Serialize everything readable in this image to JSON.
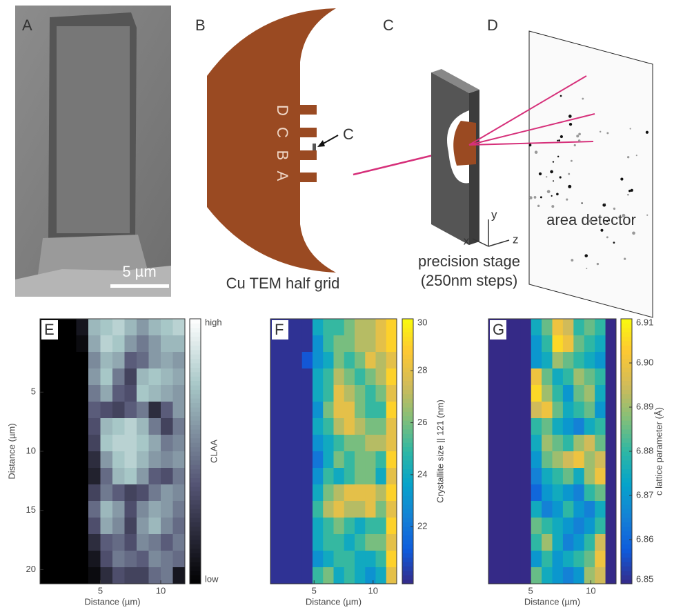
{
  "panel_labels": [
    "A",
    "B",
    "C",
    "D",
    "E",
    "F",
    "G"
  ],
  "scale_bar": "5 µm",
  "grid_labels": [
    "A",
    "B",
    "C",
    "D"
  ],
  "grid_arrow_label": "C",
  "grid_caption": "Cu TEM half grid",
  "stage_axes": [
    "x",
    "y",
    "z"
  ],
  "stage_caption": [
    "precision stage",
    "(250nm steps)"
  ],
  "detector_caption": "area detector",
  "chart_data": [
    {
      "type": "heatmap",
      "xlabel": "Distance (µm)",
      "ylabel": "Distance (µm)",
      "xlim": [
        0,
        12
      ],
      "ylim": [
        -1.2,
        21.2
      ],
      "y_reversed": true,
      "xticks": [
        5,
        10
      ],
      "yticks": [
        5,
        10,
        15,
        20
      ],
      "colormap": "bone",
      "clim": [
        0,
        1
      ],
      "cticks": [
        {
          "value": 1,
          "label": "high"
        },
        {
          "value": 0,
          "label": "low"
        }
      ],
      "clabel": "CLAA",
      "z": [
        [
          0,
          0,
          0,
          0.1,
          0.7,
          0.75,
          0.8,
          0.7,
          0.6,
          0.7,
          0.75,
          0.8
        ],
        [
          0,
          0,
          0,
          0.05,
          0.65,
          0.8,
          0.75,
          0.6,
          0.5,
          0.6,
          0.7,
          0.7
        ],
        [
          0,
          0,
          0,
          0,
          0.55,
          0.7,
          0.65,
          0.4,
          0.45,
          0.6,
          0.65,
          0.6
        ],
        [
          0,
          0,
          0,
          0,
          0.6,
          0.75,
          0.5,
          0.3,
          0.7,
          0.75,
          0.7,
          0.65
        ],
        [
          0,
          0,
          0,
          0,
          0.5,
          0.65,
          0.4,
          0.35,
          0.75,
          0.7,
          0.65,
          0.6
        ],
        [
          0,
          0,
          0,
          0,
          0.4,
          0.35,
          0.3,
          0.4,
          0.5,
          0.2,
          0.4,
          0.6
        ],
        [
          0,
          0,
          0,
          0,
          0.35,
          0.7,
          0.75,
          0.8,
          0.7,
          0.5,
          0.3,
          0.5
        ],
        [
          0,
          0,
          0,
          0,
          0.3,
          0.75,
          0.8,
          0.8,
          0.75,
          0.65,
          0.5,
          0.55
        ],
        [
          0,
          0,
          0,
          0,
          0.2,
          0.6,
          0.75,
          0.8,
          0.7,
          0.6,
          0.55,
          0.6
        ],
        [
          0,
          0,
          0,
          0,
          0.15,
          0.45,
          0.7,
          0.75,
          0.6,
          0.4,
          0.35,
          0.5
        ],
        [
          0,
          0,
          0,
          0,
          0.3,
          0.5,
          0.4,
          0.3,
          0.35,
          0.5,
          0.6,
          0.55
        ],
        [
          0,
          0,
          0,
          0,
          0.45,
          0.7,
          0.6,
          0.35,
          0.55,
          0.65,
          0.6,
          0.5
        ],
        [
          0,
          0,
          0,
          0,
          0.35,
          0.65,
          0.55,
          0.3,
          0.6,
          0.7,
          0.55,
          0.45
        ],
        [
          0,
          0,
          0,
          0,
          0.2,
          0.4,
          0.45,
          0.35,
          0.55,
          0.5,
          0.4,
          0.5
        ],
        [
          0,
          0,
          0,
          0,
          0.1,
          0.35,
          0.5,
          0.45,
          0.4,
          0.55,
          0.5,
          0.45
        ],
        [
          0,
          0,
          0,
          0,
          0.05,
          0.2,
          0.35,
          0.3,
          0.3,
          0.45,
          0.5,
          0.1
        ]
      ]
    },
    {
      "type": "heatmap",
      "xlabel": "Distance (µm)",
      "xlim": [
        1.3,
        12
      ],
      "ylim": [
        -1.2,
        21.2
      ],
      "y_reversed": true,
      "xticks": [
        5,
        10
      ],
      "colormap": "parula",
      "clim": [
        19.8,
        30
      ],
      "cticks": [
        22,
        24,
        26,
        28,
        30
      ],
      "clabel": "Crystallite size || 121 (nm)",
      "z": [
        [
          20,
          20,
          20,
          20,
          24,
          25,
          25,
          26,
          27,
          27,
          28,
          29
        ],
        [
          20,
          20,
          20,
          20,
          23,
          25,
          26,
          26,
          27,
          27,
          28,
          29
        ],
        [
          20,
          20,
          20,
          21,
          23,
          24,
          26,
          25,
          26,
          28,
          27,
          28
        ],
        [
          20,
          20,
          20,
          20,
          24,
          25,
          27,
          26,
          25,
          26,
          27,
          29
        ],
        [
          20,
          20,
          20,
          20,
          24,
          25,
          28,
          27,
          26,
          25,
          26,
          28
        ],
        [
          20,
          20,
          20,
          20,
          23,
          26,
          28,
          28,
          26,
          25,
          25,
          29
        ],
        [
          20,
          20,
          20,
          20,
          24,
          25,
          27,
          28,
          27,
          26,
          26,
          28
        ],
        [
          20,
          20,
          20,
          20,
          23,
          24,
          25,
          26,
          26,
          27,
          27,
          28
        ],
        [
          20,
          20,
          20,
          20,
          22,
          24,
          26,
          25,
          26,
          26,
          25,
          29
        ],
        [
          20,
          20,
          20,
          20,
          23,
          25,
          24,
          25,
          26,
          26,
          24,
          28
        ],
        [
          20,
          20,
          20,
          20,
          24,
          26,
          27,
          28,
          28,
          28,
          27,
          29
        ],
        [
          20,
          20,
          20,
          20,
          25,
          27,
          28,
          27,
          27,
          28,
          26,
          28
        ],
        [
          20,
          20,
          20,
          20,
          24,
          25,
          26,
          25,
          24,
          25,
          25,
          29
        ],
        [
          20,
          20,
          20,
          20,
          24,
          25,
          25,
          24,
          25,
          26,
          26,
          28
        ],
        [
          20,
          20,
          20,
          20,
          23,
          24,
          25,
          25,
          24,
          24,
          25,
          29
        ],
        [
          20,
          20,
          20,
          20,
          25,
          26,
          24,
          25,
          24,
          23,
          24,
          28
        ]
      ]
    },
    {
      "type": "heatmap",
      "xlabel": "Distance (µm)",
      "xlim": [
        1.5,
        12.1
      ],
      "ylim": [
        -1.2,
        21.2
      ],
      "y_reversed": true,
      "xticks": [
        5,
        10
      ],
      "colormap": "parula",
      "clim": [
        6.85,
        6.91
      ],
      "cticks": [
        6.85,
        6.86,
        6.87,
        6.88,
        6.89,
        {
          "value": 6.9,
          "label": "6.90"
        },
        6.91
      ],
      "clabel": "c lattice parameter (Å)",
      "z": [
        [
          6.85,
          6.85,
          6.85,
          6.85,
          6.875,
          6.885,
          6.9,
          6.895,
          6.88,
          6.885,
          6.88,
          6.85
        ],
        [
          6.85,
          6.85,
          6.85,
          6.85,
          6.87,
          6.88,
          6.905,
          6.9,
          6.885,
          6.88,
          6.875,
          6.85
        ],
        [
          6.85,
          6.85,
          6.85,
          6.85,
          6.87,
          6.875,
          6.89,
          6.885,
          6.88,
          6.875,
          6.87,
          6.85
        ],
        [
          6.85,
          6.85,
          6.85,
          6.85,
          6.9,
          6.885,
          6.875,
          6.88,
          6.89,
          6.885,
          6.88,
          6.85
        ],
        [
          6.85,
          6.85,
          6.85,
          6.85,
          6.905,
          6.89,
          6.88,
          6.87,
          6.885,
          6.89,
          6.875,
          6.85
        ],
        [
          6.85,
          6.85,
          6.85,
          6.85,
          6.895,
          6.9,
          6.885,
          6.875,
          6.88,
          6.885,
          6.87,
          6.85
        ],
        [
          6.85,
          6.85,
          6.85,
          6.85,
          6.88,
          6.885,
          6.875,
          6.87,
          6.865,
          6.875,
          6.88,
          6.85
        ],
        [
          6.85,
          6.85,
          6.85,
          6.85,
          6.875,
          6.89,
          6.885,
          6.88,
          6.89,
          6.895,
          6.885,
          6.85
        ],
        [
          6.85,
          6.85,
          6.85,
          6.85,
          6.87,
          6.885,
          6.89,
          6.895,
          6.9,
          6.89,
          6.895,
          6.85
        ],
        [
          6.85,
          6.85,
          6.85,
          6.85,
          6.865,
          6.875,
          6.88,
          6.885,
          6.875,
          6.89,
          6.9,
          6.85
        ],
        [
          6.85,
          6.85,
          6.85,
          6.85,
          6.86,
          6.87,
          6.875,
          6.87,
          6.865,
          6.88,
          6.885,
          6.85
        ],
        [
          6.85,
          6.85,
          6.85,
          6.85,
          6.875,
          6.865,
          6.87,
          6.88,
          6.87,
          6.865,
          6.875,
          6.85
        ],
        [
          6.85,
          6.85,
          6.85,
          6.85,
          6.885,
          6.88,
          6.875,
          6.87,
          6.865,
          6.87,
          6.88,
          6.85
        ],
        [
          6.85,
          6.85,
          6.85,
          6.85,
          6.88,
          6.89,
          6.875,
          6.865,
          6.87,
          6.88,
          6.895,
          6.85
        ],
        [
          6.85,
          6.85,
          6.85,
          6.85,
          6.87,
          6.88,
          6.87,
          6.875,
          6.88,
          6.885,
          6.9,
          6.85
        ],
        [
          6.85,
          6.85,
          6.85,
          6.85,
          6.885,
          6.875,
          6.87,
          6.865,
          6.87,
          6.89,
          6.895,
          6.85
        ]
      ]
    }
  ]
}
